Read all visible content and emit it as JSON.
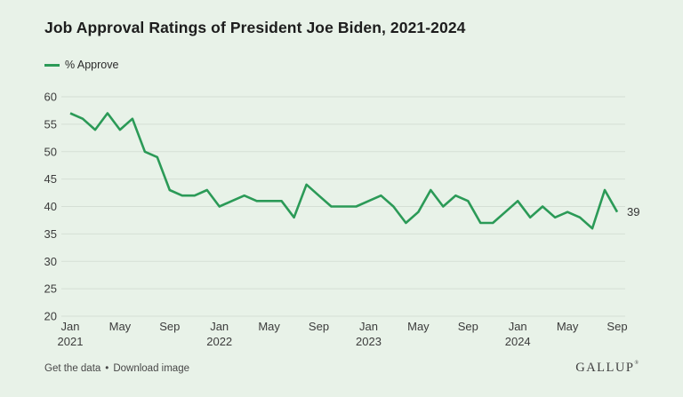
{
  "title": "Job Approval Ratings of President Joe Biden, 2021-2024",
  "legend": {
    "label": "% Approve"
  },
  "footer": {
    "links": [
      {
        "label": "Get the data"
      },
      {
        "label": "Download image"
      }
    ],
    "separator": "•",
    "brand": "GALLUP",
    "brand_mark": "®"
  },
  "colors": {
    "background": "#e8f2e8",
    "line": "#2b9a57",
    "grid": "#d5dfd5",
    "title_text": "#1d1d1d",
    "axis_text": "#3c3c3c",
    "footer_text": "#474747",
    "brand_text": "#404040"
  },
  "chart_data": {
    "type": "line",
    "title": "Job Approval Ratings of President Joe Biden, 2021-2024",
    "xlabel": "",
    "ylabel": "",
    "ylim": [
      20,
      60
    ],
    "y_ticks": [
      20,
      25,
      30,
      35,
      40,
      45,
      50,
      55,
      60
    ],
    "grid": true,
    "legend_position": "top-left",
    "x_monthly_start": "2021-01",
    "x_monthly_end": "2024-09",
    "x_ticks": [
      {
        "index": 0,
        "month": "Jan",
        "year": "2021"
      },
      {
        "index": 4,
        "month": "May"
      },
      {
        "index": 8,
        "month": "Sep"
      },
      {
        "index": 12,
        "month": "Jan",
        "year": "2022"
      },
      {
        "index": 16,
        "month": "May"
      },
      {
        "index": 20,
        "month": "Sep"
      },
      {
        "index": 24,
        "month": "Jan",
        "year": "2023"
      },
      {
        "index": 28,
        "month": "May"
      },
      {
        "index": 32,
        "month": "Sep"
      },
      {
        "index": 36,
        "month": "Jan",
        "year": "2024"
      },
      {
        "index": 40,
        "month": "May"
      },
      {
        "index": 44,
        "month": "Sep"
      }
    ],
    "series": [
      {
        "name": "% Approve",
        "values": [
          57,
          56,
          54,
          57,
          54,
          56,
          50,
          49,
          43,
          42,
          42,
          43,
          40,
          41,
          42,
          41,
          41,
          41,
          38,
          44,
          42,
          40,
          40,
          40,
          41,
          42,
          40,
          37,
          39,
          43,
          40,
          42,
          41,
          37,
          37,
          39,
          41,
          38,
          40,
          38,
          39,
          38,
          36,
          43,
          39
        ]
      }
    ],
    "end_label": "39"
  }
}
